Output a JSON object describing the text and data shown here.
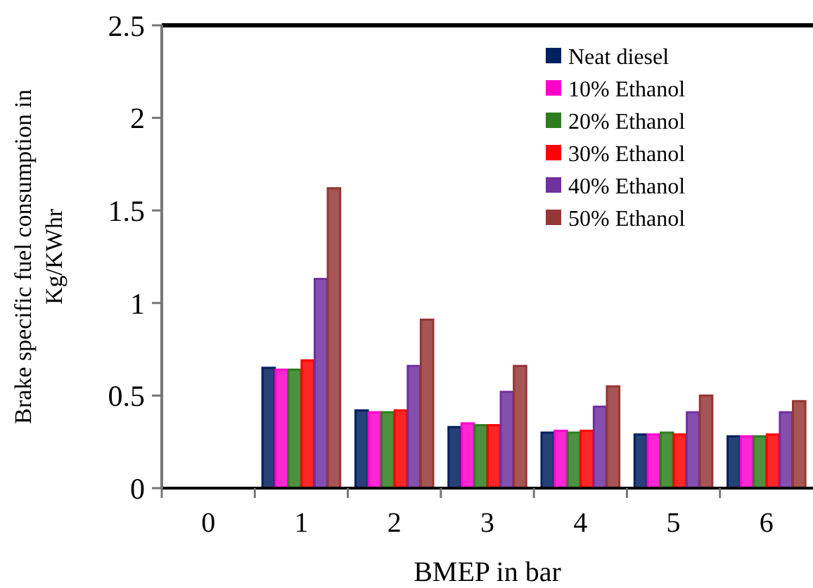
{
  "chart_data": {
    "type": "bar",
    "xlabel": "BMEP in bar",
    "ylabel": "Brake specific fuel consumption in Kg/KWhr",
    "categories": [
      "0",
      "1",
      "2",
      "3",
      "4",
      "5",
      "6"
    ],
    "series": [
      {
        "name": "Neat diesel",
        "color": "#002060",
        "values": [
          0,
          0.65,
          0.42,
          0.33,
          0.3,
          0.29,
          0.28
        ]
      },
      {
        "name": "10% Ethanol",
        "color": "#ff00cc",
        "values": [
          0,
          0.64,
          0.41,
          0.35,
          0.31,
          0.29,
          0.28
        ]
      },
      {
        "name": "20% Ethanol",
        "color": "#2e7d1e",
        "values": [
          0,
          0.64,
          0.41,
          0.34,
          0.3,
          0.3,
          0.28
        ]
      },
      {
        "name": "30% Ethanol",
        "color": "#ff0000",
        "values": [
          0,
          0.69,
          0.42,
          0.34,
          0.31,
          0.29,
          0.29
        ]
      },
      {
        "name": "40% Ethanol",
        "color": "#7030a0",
        "values": [
          0,
          1.13,
          0.66,
          0.52,
          0.44,
          0.41,
          0.41
        ]
      },
      {
        "name": "50% Ethanol",
        "color": "#953735",
        "values": [
          0,
          1.62,
          0.91,
          0.66,
          0.55,
          0.5,
          0.47
        ]
      }
    ],
    "ylim": [
      0,
      2.5
    ],
    "yticks": [
      0,
      0.5,
      1,
      1.5,
      2,
      2.5
    ],
    "grid": false,
    "legend": "top right"
  }
}
